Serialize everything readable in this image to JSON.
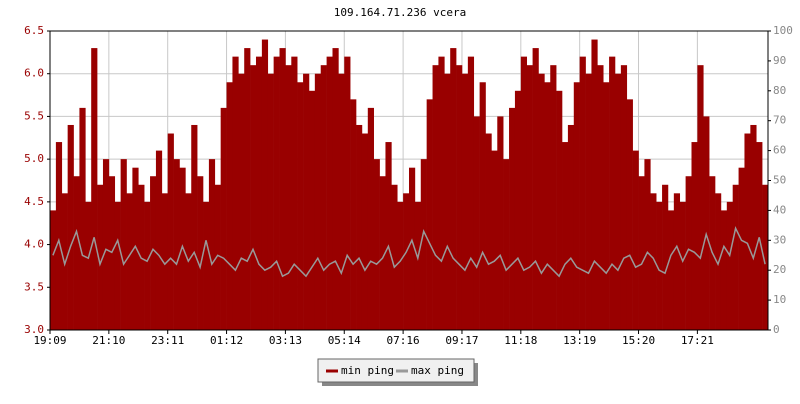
{
  "chart_data": {
    "type": "combo",
    "title": "109.164.71.236 vcera",
    "categories": [
      "19:09",
      null,
      null,
      null,
      null,
      null,
      null,
      null,
      null,
      null,
      "21:10",
      null,
      null,
      null,
      null,
      null,
      null,
      null,
      null,
      null,
      "23:11",
      null,
      null,
      null,
      null,
      null,
      null,
      null,
      null,
      null,
      "01:12",
      null,
      null,
      null,
      null,
      null,
      null,
      null,
      null,
      null,
      "03:13",
      null,
      null,
      null,
      null,
      null,
      null,
      null,
      null,
      null,
      "05:14",
      null,
      null,
      null,
      null,
      null,
      null,
      null,
      null,
      null,
      "07:16",
      null,
      null,
      null,
      null,
      null,
      null,
      null,
      null,
      null,
      "09:17",
      null,
      null,
      null,
      null,
      null,
      null,
      null,
      null,
      null,
      "11:18",
      null,
      null,
      null,
      null,
      null,
      null,
      null,
      null,
      null,
      "13:19",
      null,
      null,
      null,
      null,
      null,
      null,
      null,
      null,
      null,
      "15:20",
      null,
      null,
      null,
      null,
      null,
      null,
      null,
      null,
      null,
      "17:21",
      null,
      null,
      null,
      null,
      null,
      null,
      null,
      null,
      null,
      null,
      null
    ],
    "series": [
      {
        "name": "min ping",
        "type": "bar",
        "color": "#990000",
        "values": [
          4.4,
          5.2,
          4.6,
          5.4,
          4.8,
          5.6,
          4.5,
          6.3,
          4.7,
          5.0,
          4.8,
          4.5,
          5.0,
          4.6,
          4.9,
          4.7,
          4.5,
          4.8,
          5.1,
          4.6,
          5.3,
          5.0,
          4.9,
          4.6,
          5.4,
          4.8,
          4.5,
          5.0,
          4.7,
          5.6,
          5.9,
          6.2,
          6.0,
          6.3,
          6.1,
          6.2,
          6.4,
          6.0,
          6.2,
          6.3,
          6.1,
          6.2,
          5.9,
          6.0,
          5.8,
          6.0,
          6.1,
          6.2,
          6.3,
          6.0,
          6.2,
          5.7,
          5.4,
          5.3,
          5.6,
          5.0,
          4.8,
          5.2,
          4.7,
          4.5,
          4.6,
          4.9,
          4.5,
          5.0,
          5.7,
          6.1,
          6.2,
          6.0,
          6.3,
          6.1,
          6.0,
          6.2,
          5.5,
          5.9,
          5.3,
          5.1,
          5.5,
          5.0,
          5.6,
          5.8,
          6.2,
          6.1,
          6.3,
          6.0,
          5.9,
          6.1,
          5.8,
          5.2,
          5.4,
          5.9,
          6.2,
          6.0,
          6.4,
          6.1,
          5.9,
          6.2,
          6.0,
          6.1,
          5.7,
          5.1,
          4.8,
          5.0,
          4.6,
          4.5,
          4.7,
          4.4,
          4.6,
          4.5,
          4.8,
          5.2,
          6.1,
          5.5,
          4.8,
          4.6,
          4.4,
          4.5,
          4.7,
          4.9,
          5.3,
          5.4,
          5.2,
          4.7
        ]
      },
      {
        "name": "max ping",
        "type": "line",
        "axis": "y2",
        "color": "#999999",
        "values": [
          25,
          30,
          22,
          28,
          33,
          25,
          24,
          31,
          22,
          27,
          26,
          30,
          22,
          25,
          28,
          24,
          23,
          27,
          25,
          22,
          24,
          22,
          28,
          23,
          26,
          21,
          30,
          22,
          25,
          24,
          22,
          20,
          24,
          23,
          27,
          22,
          20,
          21,
          23,
          18,
          19,
          22,
          20,
          18,
          21,
          24,
          20,
          22,
          23,
          19,
          25,
          22,
          24,
          20,
          23,
          22,
          24,
          28,
          21,
          23,
          26,
          30,
          24,
          33,
          29,
          25,
          23,
          28,
          24,
          22,
          20,
          24,
          21,
          26,
          22,
          23,
          25,
          20,
          22,
          24,
          20,
          21,
          23,
          19,
          22,
          20,
          18,
          22,
          24,
          21,
          20,
          19,
          23,
          21,
          19,
          22,
          20,
          24,
          25,
          21,
          22,
          26,
          24,
          20,
          19,
          25,
          28,
          23,
          27,
          26,
          24,
          32,
          26,
          22,
          28,
          25,
          34,
          30,
          29,
          24,
          31,
          22
        ]
      }
    ],
    "ylim": [
      3,
      6.5
    ],
    "yticks": [
      {
        "value": 3,
        "label": "3.0"
      },
      3.5,
      {
        "value": 4,
        "label": "4.0"
      },
      4.5,
      {
        "value": 5,
        "label": "5.0"
      },
      5.5,
      {
        "value": 6,
        "label": "6.0"
      },
      6.5
    ],
    "y2lim": [
      0,
      100
    ],
    "y2ticks": [
      0,
      10,
      20,
      30,
      40,
      50,
      60,
      70,
      80,
      90,
      100
    ],
    "grid": true
  }
}
